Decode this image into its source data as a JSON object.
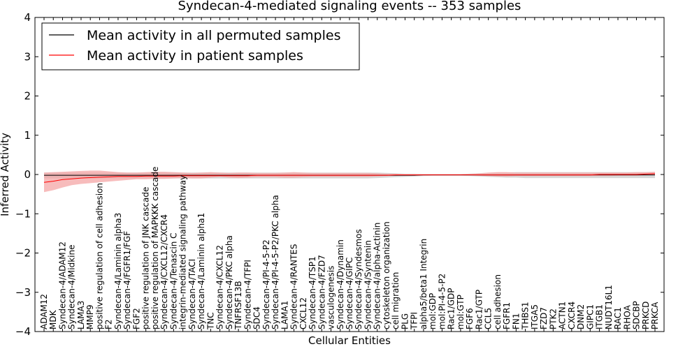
{
  "chart_data": {
    "type": "line",
    "title": "Syndecan-4-mediated signaling events -- 353 samples",
    "xlabel": "Cellular Entities",
    "ylabel": "Inferred Activity",
    "ylim": [
      -4,
      4
    ],
    "yticks": [
      4,
      3,
      2,
      1,
      0,
      -1,
      -2,
      -3,
      -4
    ],
    "ytick_labels": [
      "4",
      "3",
      "2",
      "1",
      "0",
      "−1",
      "−2",
      "−3",
      "−4"
    ],
    "legend_position": "top-left",
    "colors": {
      "permuted": "#000000",
      "patient": "#ff0000",
      "patient_band": "#f4a5a5",
      "permuted_band": "#c8c8c8"
    },
    "categories": [
      "ADAM12",
      "MDK",
      "Syndecan-4/ADAM12",
      "Syndecan-4/Midkine",
      "LAMA3",
      "MMP9",
      "positive regulation of cell adhesion",
      "F2",
      "Syndecan-4/Laminin alpha3",
      "Syndecan-4/FGFR1/FGF",
      "FGF2",
      "positive regulation of JNK cascade",
      "positive regulation of MAPKKK cascade",
      "Syndecan-4/CXCL12/CXCR4",
      "Syndecan-4/Tenascin C",
      "integrin-mediated signaling pathway",
      "Syndecan-4/TACI",
      "Syndecan-4/Laminin alpha1",
      "TNC",
      "Syndecan-4/CXCL12",
      "Syndecan-4/PKC alpha",
      "TNFRSF13B",
      "Syndecan-4/TFPI",
      "SDC4",
      "Syndecan-4/PI-4-5-P2",
      "Syndecan-4/PI-4-5-P2/PKC alpha",
      "LAMA1",
      "Syndecan-4/RANTES",
      "CXCL12",
      "Syndecan-4/TSP1",
      "Syndecan-4/FZD7",
      "vasculogenesis",
      "Syndecan-4/Dynamin",
      "Syndecan-4/GIPC",
      "Syndecan-4/Syndesmos",
      "Syndecan-4/Syntenin",
      "Syndecan-4/alpha-Actinin",
      "cytoskeleton organization",
      "cell migration",
      "PLG",
      "TFPI",
      "alpha5/beta1 Integrin",
      "mol:GDP",
      "mol:PI-4-5-P2",
      "Rac1/GDP",
      "mol:GTP",
      "FGF6",
      "Rac1/GTP",
      "CCL5",
      "cell adhesion",
      "FGFR1",
      "FN1",
      "THBS1",
      "ITGA5",
      "FZD7",
      "PTK2",
      "ACTN1",
      "CXCR4",
      "DNM2",
      "GIPC1",
      "ITGB1",
      "NUDT16L1",
      "RAC1",
      "RHOA",
      "SDCBP",
      "PRKCD",
      "PRKCA"
    ],
    "series": [
      {
        "name": "Mean activity in all permuted samples",
        "values": [
          -0.02,
          -0.02,
          -0.02,
          -0.02,
          -0.02,
          -0.02,
          -0.02,
          -0.02,
          -0.02,
          -0.02,
          -0.02,
          -0.02,
          -0.02,
          -0.02,
          -0.02,
          -0.02,
          -0.02,
          -0.02,
          -0.02,
          -0.02,
          -0.02,
          -0.02,
          -0.02,
          -0.02,
          -0.02,
          -0.02,
          -0.02,
          -0.02,
          -0.02,
          -0.02,
          -0.02,
          -0.02,
          -0.02,
          -0.02,
          -0.02,
          -0.02,
          -0.02,
          -0.02,
          -0.02,
          -0.02,
          -0.02,
          -0.01,
          -0.01,
          -0.01,
          -0.01,
          -0.01,
          -0.01,
          -0.01,
          -0.01,
          -0.01,
          -0.01,
          -0.01,
          -0.01,
          -0.01,
          -0.01,
          -0.01,
          -0.01,
          -0.01,
          -0.01,
          -0.01,
          -0.01,
          -0.01,
          -0.01,
          -0.01,
          -0.01,
          -0.01,
          -0.01
        ],
        "lower": [
          -0.1,
          -0.1,
          -0.1,
          -0.1,
          -0.1,
          -0.1,
          -0.1,
          -0.1,
          -0.1,
          -0.1,
          -0.1,
          -0.1,
          -0.1,
          -0.1,
          -0.1,
          -0.1,
          -0.1,
          -0.1,
          -0.1,
          -0.1,
          -0.1,
          -0.1,
          -0.1,
          -0.1,
          -0.1,
          -0.1,
          -0.1,
          -0.1,
          -0.1,
          -0.1,
          -0.1,
          -0.1,
          -0.1,
          -0.1,
          -0.1,
          -0.1,
          -0.09,
          -0.08,
          -0.07,
          -0.06,
          -0.05,
          -0.04,
          -0.03,
          -0.03,
          -0.03,
          -0.03,
          -0.04,
          -0.05,
          -0.06,
          -0.07,
          -0.08,
          -0.08,
          -0.09,
          -0.09,
          -0.09,
          -0.09,
          -0.09,
          -0.09,
          -0.09,
          -0.09,
          -0.09,
          -0.09,
          -0.09,
          -0.09,
          -0.09,
          -0.09,
          -0.09
        ],
        "upper": [
          0.05,
          0.05,
          0.05,
          0.05,
          0.05,
          0.05,
          0.05,
          0.05,
          0.05,
          0.05,
          0.05,
          0.05,
          0.05,
          0.05,
          0.05,
          0.05,
          0.05,
          0.05,
          0.05,
          0.05,
          0.05,
          0.05,
          0.05,
          0.05,
          0.05,
          0.05,
          0.05,
          0.05,
          0.05,
          0.05,
          0.05,
          0.05,
          0.05,
          0.05,
          0.05,
          0.05,
          0.05,
          0.04,
          0.03,
          0.02,
          0.02,
          0.01,
          0.01,
          0.01,
          0.01,
          0.01,
          0.02,
          0.03,
          0.04,
          0.05,
          0.05,
          0.06,
          0.06,
          0.06,
          0.06,
          0.06,
          0.06,
          0.06,
          0.06,
          0.06,
          0.06,
          0.06,
          0.06,
          0.06,
          0.06,
          0.06,
          0.06
        ]
      },
      {
        "name": "Mean activity in patient samples",
        "values": [
          -0.2,
          -0.17,
          -0.13,
          -0.11,
          -0.09,
          -0.08,
          -0.07,
          -0.06,
          -0.05,
          -0.05,
          -0.05,
          -0.04,
          -0.04,
          -0.04,
          -0.04,
          -0.03,
          -0.03,
          -0.03,
          -0.03,
          -0.03,
          -0.03,
          -0.03,
          -0.03,
          -0.02,
          -0.02,
          -0.02,
          -0.02,
          -0.02,
          -0.02,
          -0.02,
          -0.02,
          -0.02,
          -0.02,
          -0.02,
          -0.02,
          -0.02,
          -0.02,
          -0.02,
          -0.01,
          -0.01,
          -0.01,
          -0.01,
          -0.01,
          -0.01,
          -0.01,
          -0.01,
          -0.01,
          -0.01,
          -0.01,
          -0.01,
          -0.01,
          -0.01,
          -0.01,
          -0.01,
          -0.01,
          -0.01,
          -0.01,
          -0.01,
          -0.01,
          -0.01,
          0.0,
          0.0,
          0.0,
          0.0,
          0.0,
          0.01,
          0.02
        ],
        "lower": [
          -0.45,
          -0.4,
          -0.33,
          -0.27,
          -0.24,
          -0.22,
          -0.2,
          -0.18,
          -0.16,
          -0.14,
          -0.12,
          -0.12,
          -0.11,
          -0.11,
          -0.1,
          -0.09,
          -0.1,
          -0.1,
          -0.08,
          -0.06,
          -0.08,
          -0.09,
          -0.08,
          -0.07,
          -0.07,
          -0.07,
          -0.08,
          -0.08,
          -0.07,
          -0.06,
          -0.06,
          -0.06,
          -0.06,
          -0.06,
          -0.06,
          -0.06,
          -0.05,
          -0.04,
          -0.03,
          -0.02,
          -0.02,
          -0.02,
          -0.01,
          -0.01,
          -0.01,
          -0.01,
          -0.02,
          -0.03,
          -0.04,
          -0.05,
          -0.05,
          -0.04,
          -0.04,
          -0.04,
          -0.04,
          -0.04,
          -0.04,
          -0.04,
          -0.04,
          -0.04,
          -0.04,
          -0.04,
          -0.03,
          -0.03,
          -0.03,
          -0.02,
          -0.01
        ],
        "upper": [
          0.05,
          0.06,
          0.07,
          0.08,
          0.09,
          0.1,
          0.1,
          0.08,
          0.06,
          0.05,
          0.05,
          0.06,
          0.07,
          0.07,
          0.06,
          0.05,
          0.04,
          0.05,
          0.06,
          0.05,
          0.04,
          0.05,
          0.05,
          0.04,
          0.04,
          0.04,
          0.05,
          0.06,
          0.05,
          0.04,
          0.04,
          0.04,
          0.04,
          0.04,
          0.04,
          0.04,
          0.03,
          0.02,
          0.02,
          0.01,
          0.01,
          0.01,
          0.01,
          0.01,
          0.01,
          0.01,
          0.02,
          0.03,
          0.05,
          0.06,
          0.06,
          0.05,
          0.05,
          0.05,
          0.05,
          0.05,
          0.05,
          0.05,
          0.05,
          0.05,
          0.05,
          0.05,
          0.05,
          0.05,
          0.06,
          0.06,
          0.07
        ]
      }
    ]
  }
}
